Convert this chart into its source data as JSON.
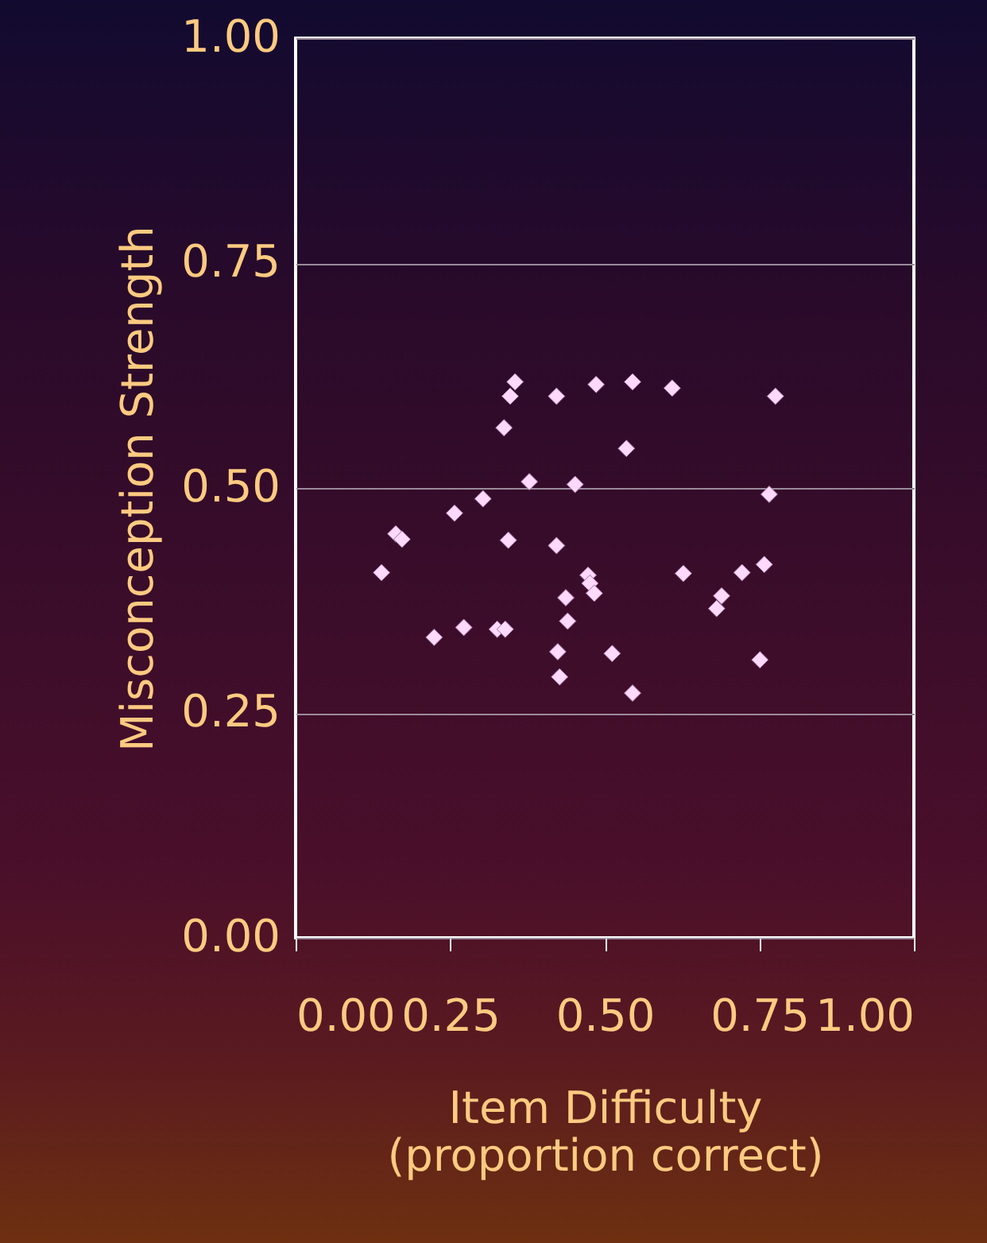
{
  "chart_data": {
    "type": "scatter",
    "xlabel": "Item Difficulty\n(proportion correct)",
    "ylabel": "Misconception Strength",
    "x": [
      0.139,
      0.162,
      0.172,
      0.224,
      0.257,
      0.272,
      0.303,
      0.326,
      0.339,
      0.337,
      0.344,
      0.347,
      0.355,
      0.378,
      0.422,
      0.422,
      0.424,
      0.427,
      0.437,
      0.44,
      0.452,
      0.473,
      0.476,
      0.483,
      0.486,
      0.512,
      0.535,
      0.545,
      0.545,
      0.609,
      0.627,
      0.681,
      0.689,
      0.722,
      0.751,
      0.758,
      0.766,
      0.776
    ],
    "series": [
      {
        "color": "#ffd9fb",
        "values": [
          0.406,
          0.449,
          0.443,
          0.334,
          0.472,
          0.345,
          0.488,
          0.343,
          0.343,
          0.567,
          0.442,
          0.602,
          0.618,
          0.507,
          0.602,
          0.436,
          0.318,
          0.29,
          0.378,
          0.352,
          0.504,
          0.403,
          0.394,
          0.383,
          0.615,
          0.316,
          0.544,
          0.618,
          0.272,
          0.611,
          0.405,
          0.366,
          0.38,
          0.406,
          0.309,
          0.415,
          0.493,
          0.602
        ]
      }
    ],
    "xlim": [
      0,
      1
    ],
    "ylim": [
      0,
      1
    ],
    "xticks": [
      {
        "value": 0,
        "label": "0.00"
      },
      {
        "value": 0.25,
        "label": "0.25"
      },
      {
        "value": 0.5,
        "label": "0.50"
      },
      {
        "value": 0.75,
        "label": "0.75"
      },
      {
        "value": 1,
        "label": "1.00"
      }
    ],
    "yticks": [
      {
        "value": 0,
        "label": "0.00"
      },
      {
        "value": 0.25,
        "label": "0.25"
      },
      {
        "value": 0.5,
        "label": "0.50"
      },
      {
        "value": 0.75,
        "label": "0.75"
      },
      {
        "value": 1,
        "label": "1.00"
      }
    ],
    "grid": "y",
    "marker": "diamond"
  }
}
